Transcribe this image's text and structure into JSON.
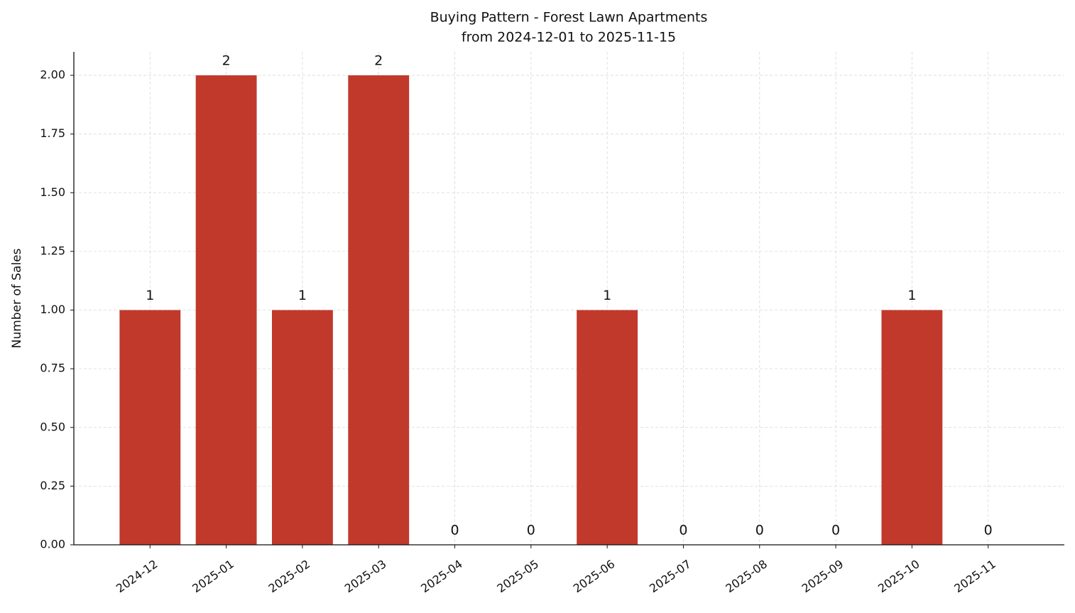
{
  "chart_data": {
    "type": "bar",
    "title": "Buying Pattern - Forest Lawn Apartments",
    "subtitle": "from 2024-12-01 to 2025-11-15",
    "y_label": "Number of Sales",
    "categories": [
      "2024-12",
      "2025-01",
      "2025-02",
      "2025-03",
      "2025-04",
      "2025-05",
      "2025-06",
      "2025-07",
      "2025-08",
      "2025-09",
      "2025-10",
      "2025-11"
    ],
    "values": [
      1,
      2,
      1,
      2,
      0,
      0,
      1,
      0,
      0,
      0,
      1,
      0
    ],
    "color": "#c0392b",
    "ylim": [
      0,
      2.1
    ],
    "yticks": [
      {
        "value": 0,
        "label": "0.00"
      },
      {
        "value": 0.25,
        "label": "0.25"
      },
      {
        "value": 0.5,
        "label": "0.50"
      },
      {
        "value": 0.75,
        "label": "0.75"
      },
      {
        "value": 1,
        "label": "1.00"
      },
      {
        "value": 1.25,
        "label": "1.25"
      },
      {
        "value": 1.5,
        "label": "1.50"
      },
      {
        "value": 1.75,
        "label": "1.75"
      },
      {
        "value": 2,
        "label": "2.00"
      }
    ],
    "grid": true
  }
}
